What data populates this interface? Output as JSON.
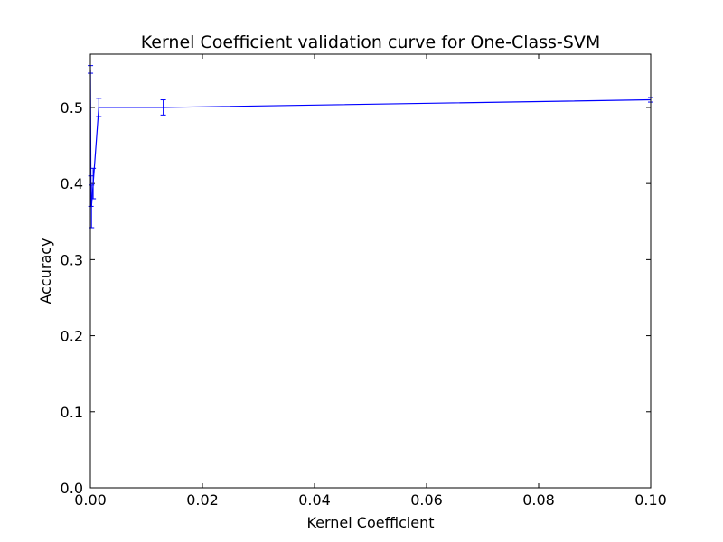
{
  "chart_data": {
    "type": "line",
    "title": "Kernel Coefficient validation curve for One-Class-SVM",
    "xlabel": "Kernel Coefficient",
    "ylabel": "Accuracy",
    "xlim": [
      0,
      0.1
    ],
    "ylim": [
      0,
      0.57
    ],
    "x_ticks": [
      0.0,
      0.02,
      0.04,
      0.06,
      0.08,
      0.1
    ],
    "x_tick_labels": [
      "0.00",
      "0.02",
      "0.04",
      "0.06",
      "0.08",
      "0.10"
    ],
    "y_ticks": [
      0.0,
      0.1,
      0.2,
      0.3,
      0.4,
      0.5
    ],
    "y_tick_labels": [
      "0.0",
      "0.1",
      "0.2",
      "0.3",
      "0.4",
      "0.5"
    ],
    "grid": false,
    "series": [
      {
        "color": "#0000ff",
        "x": [
          1e-05,
          0.0001,
          0.0002,
          0.0005,
          0.0015,
          0.013,
          0.1
        ],
        "y": [
          0.55,
          0.39,
          0.37,
          0.4,
          0.5,
          0.5,
          0.51
        ],
        "yerr": [
          0.005,
          0.02,
          0.028,
          0.02,
          0.012,
          0.01,
          0.003
        ]
      }
    ]
  }
}
